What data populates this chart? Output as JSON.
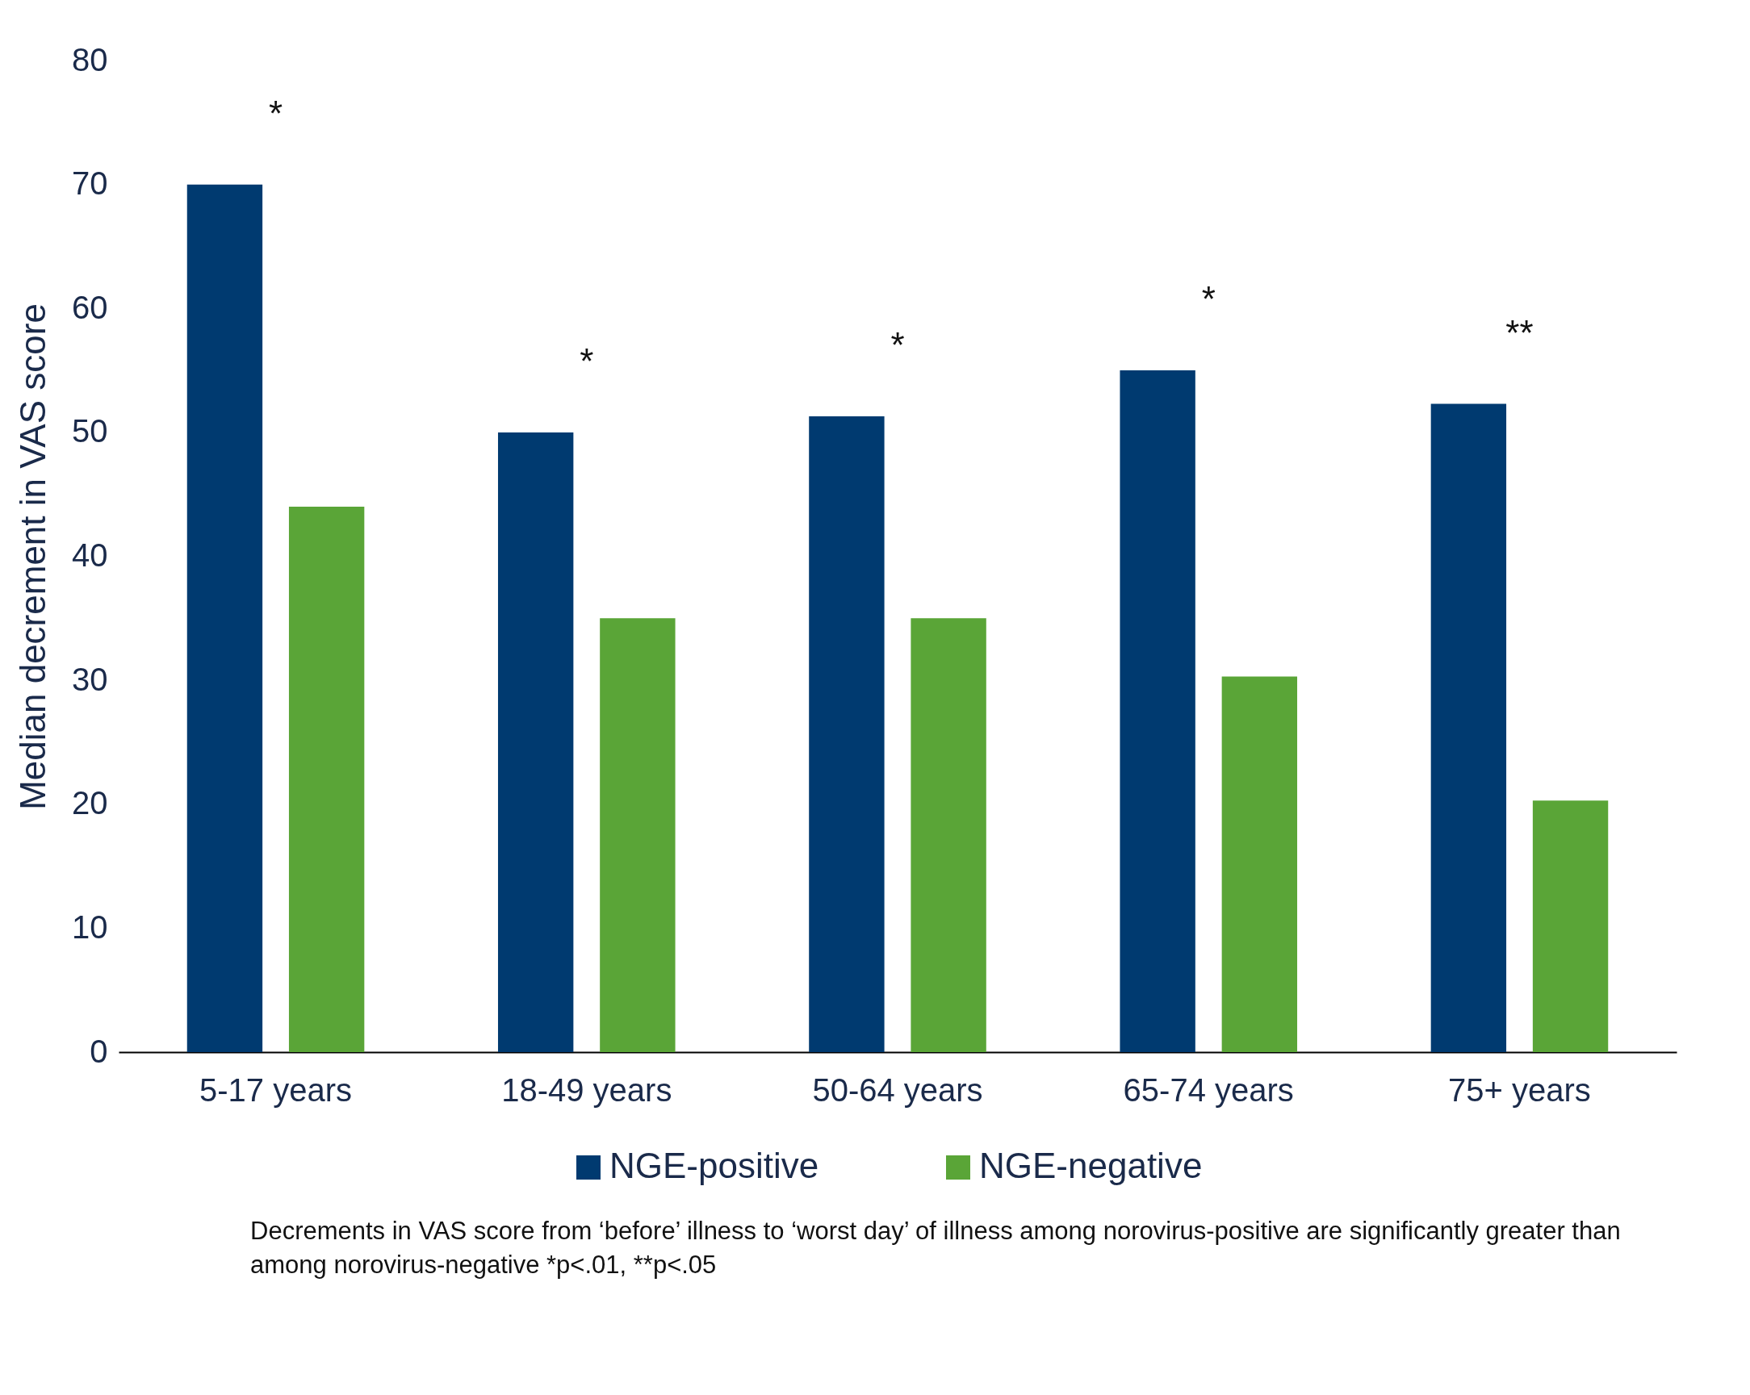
{
  "chart_data": {
    "type": "bar",
    "ylabel": "Median decrement in VAS score",
    "categories": [
      "5-17 years",
      "18-49 years",
      "50-64 years",
      "65-74 years",
      "75+ years"
    ],
    "series": [
      {
        "name": "NGE-positive",
        "color": "#003a70",
        "values": [
          70,
          50,
          51.3,
          55,
          52.3
        ]
      },
      {
        "name": "NGE-negative",
        "color": "#5aa537",
        "values": [
          44,
          35,
          35,
          30.3,
          20.3
        ]
      }
    ],
    "ylim": [
      0,
      80
    ],
    "yticks": [
      0,
      10,
      20,
      30,
      40,
      50,
      60,
      70,
      80
    ],
    "grid": false,
    "legend": "bottom",
    "annotations": [
      "*",
      "*",
      "*",
      "*",
      "**",
      "Decrements in VAS score from ‘before’ illness to ‘worst day’ of illness among norovirus-positive are significantly greater than among norovirus-negative *p<.01, **p<.05"
    ]
  }
}
